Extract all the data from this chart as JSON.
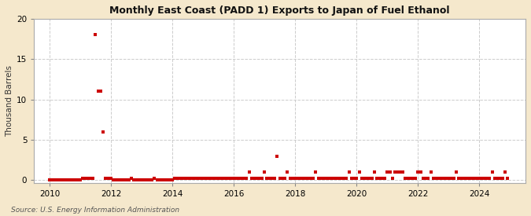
{
  "title": "Monthly East Coast (PADD 1) Exports to Japan of Fuel Ethanol",
  "ylabel": "Thousand Barrels",
  "source": "Source: U.S. Energy Information Administration",
  "fig_bg_color": "#f5e8cc",
  "plot_bg_color": "#ffffff",
  "marker_color": "#cc0000",
  "marker_size": 5,
  "xlim": [
    2009.5,
    2025.5
  ],
  "ylim": [
    -0.3,
    20
  ],
  "yticks": [
    0,
    5,
    10,
    15,
    20
  ],
  "xticks": [
    2010,
    2012,
    2014,
    2016,
    2018,
    2020,
    2022,
    2024
  ],
  "data_points": [
    [
      2010.0,
      0
    ],
    [
      2010.083,
      0
    ],
    [
      2010.167,
      0
    ],
    [
      2010.25,
      0
    ],
    [
      2010.333,
      0
    ],
    [
      2010.417,
      0
    ],
    [
      2010.5,
      0
    ],
    [
      2010.583,
      0
    ],
    [
      2010.667,
      0
    ],
    [
      2010.75,
      0
    ],
    [
      2010.833,
      0
    ],
    [
      2010.917,
      0
    ],
    [
      2011.0,
      0
    ],
    [
      2011.083,
      0.2
    ],
    [
      2011.167,
      0.2
    ],
    [
      2011.25,
      0.2
    ],
    [
      2011.333,
      0.2
    ],
    [
      2011.417,
      0.2
    ],
    [
      2011.5,
      18
    ],
    [
      2011.583,
      11
    ],
    [
      2011.667,
      11
    ],
    [
      2011.75,
      6
    ],
    [
      2011.833,
      0.2
    ],
    [
      2011.917,
      0.2
    ],
    [
      2012.0,
      0.2
    ],
    [
      2012.083,
      0
    ],
    [
      2012.167,
      0
    ],
    [
      2012.25,
      0
    ],
    [
      2012.333,
      0
    ],
    [
      2012.417,
      0
    ],
    [
      2012.5,
      0
    ],
    [
      2012.583,
      0
    ],
    [
      2012.667,
      0.2
    ],
    [
      2012.75,
      0
    ],
    [
      2012.833,
      0
    ],
    [
      2012.917,
      0
    ],
    [
      2013.0,
      0
    ],
    [
      2013.083,
      0
    ],
    [
      2013.167,
      0
    ],
    [
      2013.25,
      0
    ],
    [
      2013.333,
      0
    ],
    [
      2013.417,
      0.2
    ],
    [
      2013.5,
      0
    ],
    [
      2013.583,
      0
    ],
    [
      2013.667,
      0
    ],
    [
      2013.75,
      0
    ],
    [
      2013.833,
      0
    ],
    [
      2013.917,
      0
    ],
    [
      2014.0,
      0
    ],
    [
      2014.083,
      0.2
    ],
    [
      2014.167,
      0.2
    ],
    [
      2014.25,
      0.2
    ],
    [
      2014.333,
      0.2
    ],
    [
      2014.417,
      0.2
    ],
    [
      2014.5,
      0.2
    ],
    [
      2014.583,
      0.2
    ],
    [
      2014.667,
      0.2
    ],
    [
      2014.75,
      0.2
    ],
    [
      2014.833,
      0.2
    ],
    [
      2014.917,
      0.2
    ],
    [
      2015.0,
      0.2
    ],
    [
      2015.083,
      0.2
    ],
    [
      2015.167,
      0.2
    ],
    [
      2015.25,
      0.2
    ],
    [
      2015.333,
      0.2
    ],
    [
      2015.417,
      0.2
    ],
    [
      2015.5,
      0.2
    ],
    [
      2015.583,
      0.2
    ],
    [
      2015.667,
      0.2
    ],
    [
      2015.75,
      0.2
    ],
    [
      2015.833,
      0.2
    ],
    [
      2015.917,
      0.2
    ],
    [
      2016.0,
      0.2
    ],
    [
      2016.083,
      0.2
    ],
    [
      2016.167,
      0.2
    ],
    [
      2016.25,
      0.2
    ],
    [
      2016.333,
      0.2
    ],
    [
      2016.417,
      0.2
    ],
    [
      2016.5,
      1
    ],
    [
      2016.583,
      0.2
    ],
    [
      2016.667,
      0.2
    ],
    [
      2016.75,
      0.2
    ],
    [
      2016.833,
      0.2
    ],
    [
      2016.917,
      0.2
    ],
    [
      2017.0,
      1
    ],
    [
      2017.083,
      0.2
    ],
    [
      2017.167,
      0.2
    ],
    [
      2017.25,
      0.2
    ],
    [
      2017.333,
      0.2
    ],
    [
      2017.417,
      3
    ],
    [
      2017.5,
      0.2
    ],
    [
      2017.583,
      0.2
    ],
    [
      2017.667,
      0.2
    ],
    [
      2017.75,
      1
    ],
    [
      2017.833,
      0.2
    ],
    [
      2017.917,
      0.2
    ],
    [
      2018.0,
      0.2
    ],
    [
      2018.083,
      0.2
    ],
    [
      2018.167,
      0.2
    ],
    [
      2018.25,
      0.2
    ],
    [
      2018.333,
      0.2
    ],
    [
      2018.417,
      0.2
    ],
    [
      2018.5,
      0.2
    ],
    [
      2018.583,
      0.2
    ],
    [
      2018.667,
      1
    ],
    [
      2018.75,
      0.2
    ],
    [
      2018.833,
      0.2
    ],
    [
      2018.917,
      0.2
    ],
    [
      2019.0,
      0.2
    ],
    [
      2019.083,
      0.2
    ],
    [
      2019.167,
      0.2
    ],
    [
      2019.25,
      0.2
    ],
    [
      2019.333,
      0.2
    ],
    [
      2019.417,
      0.2
    ],
    [
      2019.5,
      0.2
    ],
    [
      2019.583,
      0.2
    ],
    [
      2019.667,
      0.2
    ],
    [
      2019.75,
      1
    ],
    [
      2019.833,
      0.2
    ],
    [
      2019.917,
      0.2
    ],
    [
      2020.0,
      0.2
    ],
    [
      2020.083,
      1
    ],
    [
      2020.167,
      0.2
    ],
    [
      2020.25,
      0.2
    ],
    [
      2020.333,
      0.2
    ],
    [
      2020.417,
      0.2
    ],
    [
      2020.5,
      0.2
    ],
    [
      2020.583,
      1
    ],
    [
      2020.667,
      0.2
    ],
    [
      2020.75,
      0.2
    ],
    [
      2020.833,
      0.2
    ],
    [
      2020.917,
      0.2
    ],
    [
      2021.0,
      1
    ],
    [
      2021.083,
      1
    ],
    [
      2021.167,
      0.2
    ],
    [
      2021.25,
      1
    ],
    [
      2021.333,
      1
    ],
    [
      2021.417,
      1
    ],
    [
      2021.5,
      1
    ],
    [
      2021.583,
      0.2
    ],
    [
      2021.667,
      0.2
    ],
    [
      2021.75,
      0.2
    ],
    [
      2021.833,
      0.2
    ],
    [
      2021.917,
      0.2
    ],
    [
      2022.0,
      1
    ],
    [
      2022.083,
      1
    ],
    [
      2022.167,
      0.2
    ],
    [
      2022.25,
      0.2
    ],
    [
      2022.333,
      0.2
    ],
    [
      2022.417,
      1
    ],
    [
      2022.5,
      0.2
    ],
    [
      2022.583,
      0.2
    ],
    [
      2022.667,
      0.2
    ],
    [
      2022.75,
      0.2
    ],
    [
      2022.833,
      0.2
    ],
    [
      2022.917,
      0.2
    ],
    [
      2023.0,
      0.2
    ],
    [
      2023.083,
      0.2
    ],
    [
      2023.167,
      0.2
    ],
    [
      2023.25,
      1
    ],
    [
      2023.333,
      0.2
    ],
    [
      2023.417,
      0.2
    ],
    [
      2023.5,
      0.2
    ],
    [
      2023.583,
      0.2
    ],
    [
      2023.667,
      0.2
    ],
    [
      2023.75,
      0.2
    ],
    [
      2023.833,
      0.2
    ],
    [
      2023.917,
      0.2
    ],
    [
      2024.0,
      0.2
    ],
    [
      2024.083,
      0.2
    ],
    [
      2024.167,
      0.2
    ],
    [
      2024.25,
      0.2
    ],
    [
      2024.333,
      0.2
    ],
    [
      2024.417,
      1
    ],
    [
      2024.5,
      0.2
    ],
    [
      2024.583,
      0.2
    ],
    [
      2024.667,
      0.2
    ],
    [
      2024.75,
      0.2
    ],
    [
      2024.833,
      1
    ],
    [
      2024.917,
      0.2
    ]
  ]
}
